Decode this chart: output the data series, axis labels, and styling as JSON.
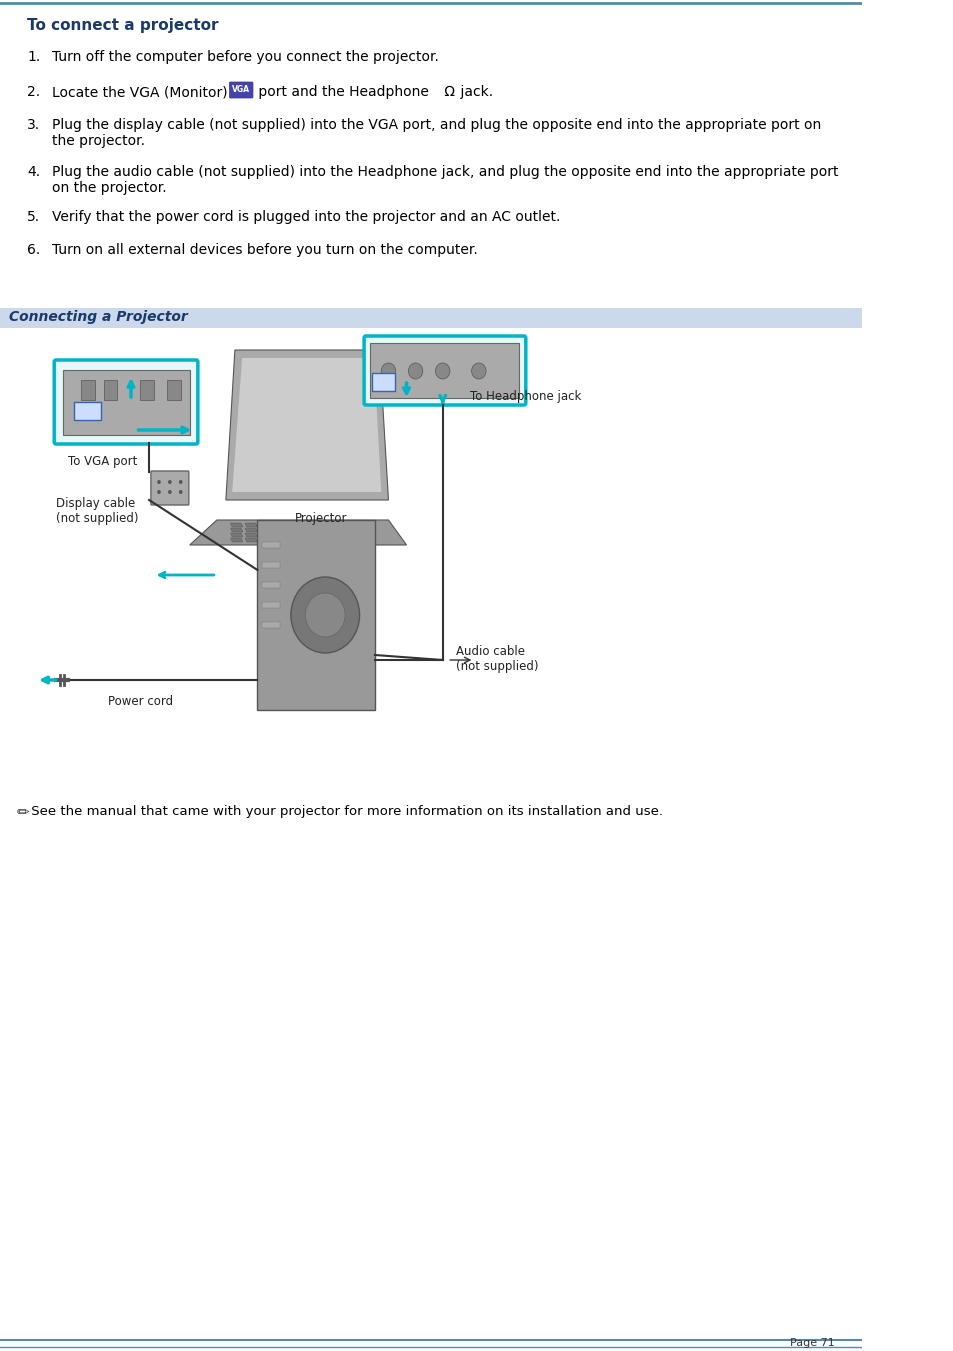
{
  "title": "To connect a projector",
  "title_color": "#1a3a6b",
  "title_bold": true,
  "title_fontsize": 11,
  "steps": [
    "Turn off the computer before you connect the projector.",
    "Locate the VGA (Monitor) [VGA] port and the Headphone [Ω] jack.",
    "Plug the display cable (not supplied) into the VGA port, and plug the opposite end into the appropriate port on\nthe projector.",
    "Plug the audio cable (not supplied) into the Headphone jack, and plug the opposite end into the appropriate port\non the projector.",
    "Verify that the power cord is plugged into the projector and an AC outlet.",
    "Turn on all external devices before you turn on the computer."
  ],
  "step_fontsize": 10,
  "step_color": "#000000",
  "section_label": "Connecting a Projector",
  "section_label_color": "#1a3a6b",
  "section_bg_color": "#ccd9ea",
  "section_fontsize": 10,
  "note_text": " See the manual that came with your projector for more information on its installation and use.",
  "note_fontsize": 9.5,
  "note_color": "#000000",
  "page_number": "Page 71",
  "page_num_fontsize": 8,
  "bg_color": "#ffffff",
  "border_color": "#5588aa",
  "border_linewidth": 1.5
}
